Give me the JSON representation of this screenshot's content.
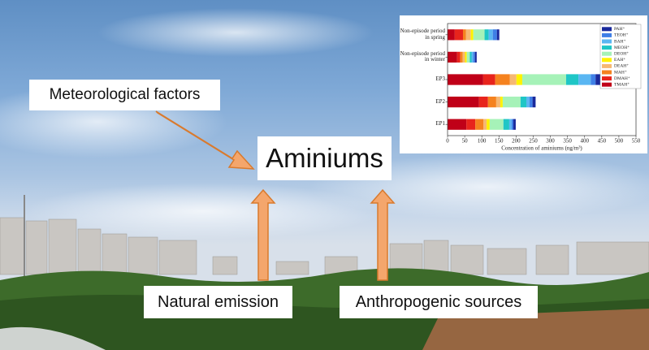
{
  "labels": {
    "factor": "Meteorological factors",
    "center": "Aminiums",
    "natural": "Natural emission",
    "anthropogenic": "Anthropogenic sources"
  },
  "chart_data": {
    "type": "bar",
    "orientation": "horizontal",
    "stacked": true,
    "categories": [
      "Non-episode period in spring",
      "Non-episode period in winter",
      "EP3",
      "EP2",
      "EP1"
    ],
    "series": [
      {
        "name": "TMAH⁺",
        "color": "#c00018",
        "values": [
          21,
          28,
          104,
          92,
          55
        ]
      },
      {
        "name": "DMAH⁺",
        "color": "#e8241c",
        "values": [
          24,
          9,
          35,
          26,
          26
        ]
      },
      {
        "name": "MAH⁺",
        "color": "#f5821f",
        "values": [
          9,
          7,
          43,
          24,
          24
        ]
      },
      {
        "name": "DEAH⁺",
        "color": "#f6b873",
        "values": [
          14,
          7,
          19,
          12,
          9
        ]
      },
      {
        "name": "EAH⁺",
        "color": "#fff200",
        "values": [
          7,
          5,
          17,
          7,
          9
        ]
      },
      {
        "name": "DEOH⁺",
        "color": "#a6f2b8",
        "values": [
          33,
          9,
          128,
          52,
          40
        ]
      },
      {
        "name": "MEOH⁺",
        "color": "#1fc6c6",
        "values": [
          12,
          5,
          36,
          17,
          17
        ]
      },
      {
        "name": "BAH⁺",
        "color": "#5ab6f2",
        "values": [
          12,
          5,
          36,
          9,
          7
        ]
      },
      {
        "name": "TEOH⁺",
        "color": "#3f7fe6",
        "values": [
          12,
          5,
          14,
          9,
          5
        ]
      },
      {
        "name": "PAH⁺",
        "color": "#1a2a9c",
        "values": [
          7,
          5,
          17,
          9,
          7
        ]
      }
    ],
    "xlim": [
      0,
      550
    ],
    "xticks": [
      0,
      50,
      100,
      150,
      200,
      250,
      300,
      350,
      400,
      450,
      500,
      550
    ],
    "xlabel": "Concentration of aminiums (ng/m³)",
    "legend": "right"
  }
}
